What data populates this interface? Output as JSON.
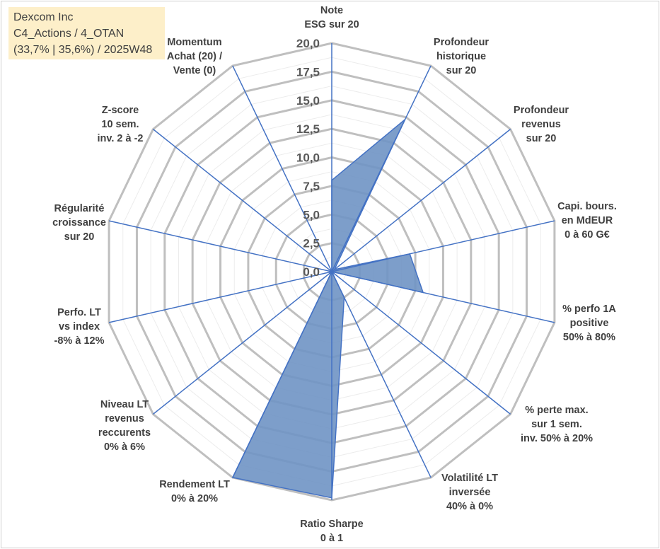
{
  "legend": {
    "lines": [
      "Dexcom Inc",
      "C4_Actions / 4_OTAN",
      "(33,7% | 35,6%) / 2025W48"
    ]
  },
  "chart_data": {
    "type": "radar",
    "title": "",
    "axis_range": [
      0,
      20
    ],
    "tick_labels": [
      "0,0",
      "2,5",
      "5,0",
      "7,5",
      "10,0",
      "12,5",
      "15,0",
      "17,5",
      "20,0"
    ],
    "tick_values": [
      0,
      2.5,
      5,
      7.5,
      10,
      12.5,
      15,
      17.5,
      20
    ],
    "categories": [
      [
        "Note",
        "ESG sur 20"
      ],
      [
        "Profondeur",
        "historique",
        "sur 20"
      ],
      [
        "Profondeur",
        "revenus",
        "sur 20"
      ],
      [
        "Capi. bours.",
        "en MdEUR",
        "0 à 60 G€"
      ],
      [
        "% perfo 1A",
        "positive",
        "50% à 80%"
      ],
      [
        "% perte max.",
        "sur 1 sem.",
        "inv. 50% à 20%"
      ],
      [
        "Volatilité LT",
        "inversée",
        "40% à 0%"
      ],
      [
        "Ratio Sharpe",
        "0 à 1"
      ],
      [
        "Rendement LT",
        "0% à 20%"
      ],
      [
        "Niveau LT",
        "revenus",
        "reccurents",
        "0% à 6%"
      ],
      [
        "Perfo. LT",
        "vs index",
        "-8% à 12%"
      ],
      [
        "Régularité",
        "croissance",
        "sur 20"
      ],
      [
        "Z-score",
        "10 sem.",
        "inv. 2 à -2"
      ],
      [
        "Momentum",
        "Achat (20) /",
        "Vente (0)"
      ]
    ],
    "series": [
      {
        "name": "Dexcom Inc",
        "values": [
          8.0,
          14.8,
          0.3,
          7.0,
          8.2,
          0.0,
          2.5,
          19.8,
          20.0,
          0.0,
          0.0,
          0.0,
          0.0,
          0.0
        ]
      }
    ],
    "colors": {
      "fill": "#6f94c4",
      "stroke": "#4472c4",
      "grid": "#bfbfbf",
      "axis": "#4472c4"
    }
  }
}
